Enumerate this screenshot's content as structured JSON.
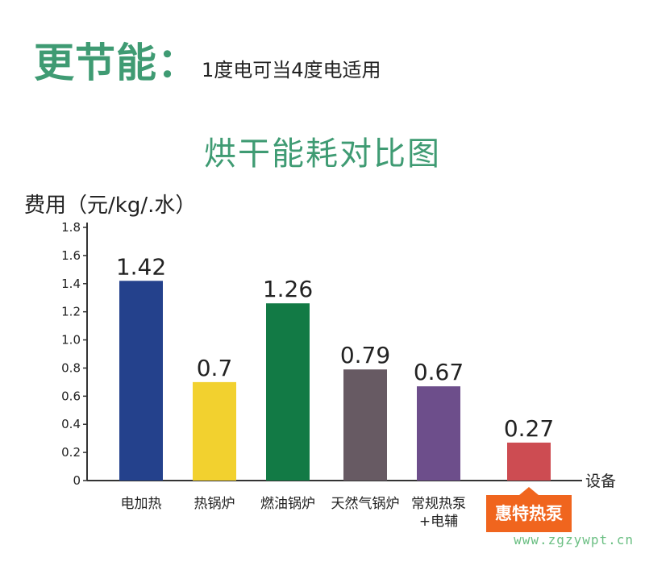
{
  "headline": {
    "main": "更节能：",
    "sub": "1度电可当4度电适用"
  },
  "chart_data": {
    "type": "bar",
    "title": "烘干能耗对比图",
    "ylabel": "费用（元/kg/.水）",
    "xlabel": "设备",
    "ylim": [
      0,
      1.8
    ],
    "yticks": [
      "0",
      "0.2",
      "0.4",
      "0.6",
      "0.8",
      "1.0",
      "1.2",
      "1.4",
      "1.6",
      "1.8"
    ],
    "categories": [
      "电加热",
      "热锅炉",
      "燃油锅炉",
      "天然气锅炉",
      "常规热泵+电辅",
      "惠特热泵"
    ],
    "values": [
      1.42,
      0.7,
      1.26,
      0.79,
      0.67,
      0.27
    ],
    "value_labels": [
      "1.42",
      "0.7",
      "1.26",
      "0.79",
      "0.67",
      "0.27"
    ],
    "colors": [
      "#24418c",
      "#f2d12f",
      "#127a45",
      "#675a63",
      "#6d4e8b",
      "#cd4c52"
    ],
    "highlight_index": 5,
    "highlight_color": "#f0651e",
    "grid": false,
    "legend": "none"
  },
  "watermark": "www.zgzywpt.cn"
}
